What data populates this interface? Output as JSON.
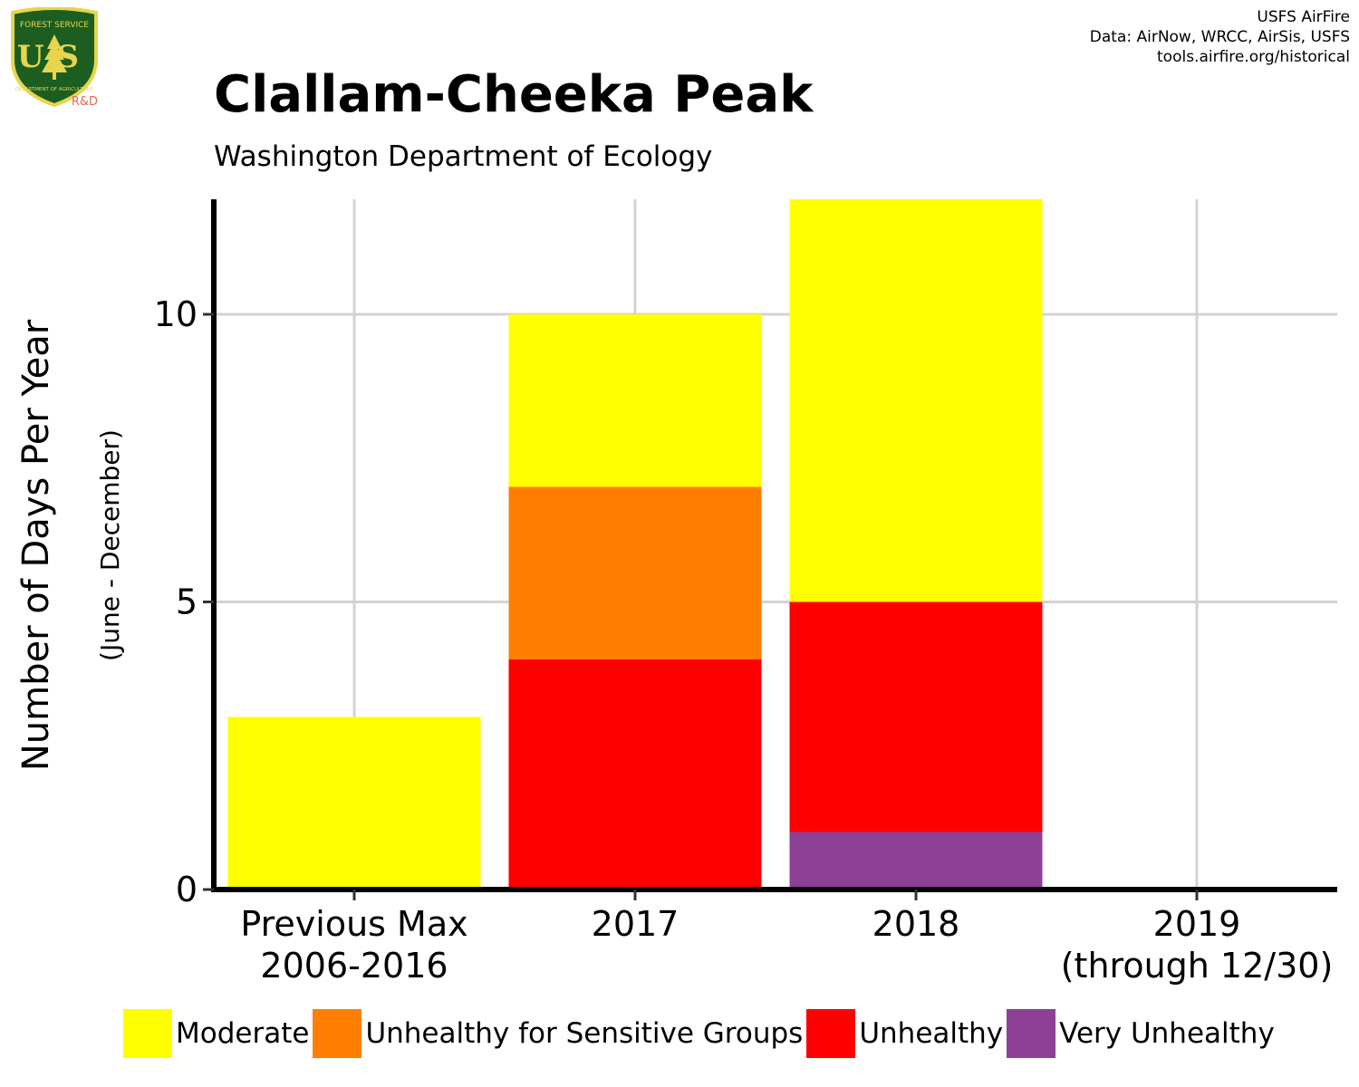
{
  "header": {
    "title": "Clallam-Cheeka Peak",
    "subtitle": "Washington Department of Ecology"
  },
  "credits": {
    "line1": "USFS AirFire",
    "line2": "Data: AirNow, WRCC, AirSis, USFS",
    "line3": "tools.airfire.org/historical"
  },
  "logo": {
    "top_text": "FOREST SERVICE",
    "letters": "US",
    "bottom_text": "DEPARTMENT OF AGRICULTURE",
    "rd_text": "R&D"
  },
  "chart_data": {
    "type": "bar",
    "stacked": true,
    "categories": [
      [
        "Previous Max",
        "2006-2016"
      ],
      [
        "2017"
      ],
      [
        "2018"
      ],
      [
        "2019",
        "(through 12/30)"
      ]
    ],
    "series": [
      {
        "name": "Very Unhealthy",
        "color": "#8E3F96",
        "values": [
          0,
          0,
          1,
          0
        ]
      },
      {
        "name": "Unhealthy",
        "color": "#FF0000",
        "values": [
          0,
          4,
          4,
          0
        ]
      },
      {
        "name": "Unhealthy for Sensitive Groups",
        "color": "#FF7E00",
        "values": [
          0,
          3,
          0,
          0
        ]
      },
      {
        "name": "Moderate",
        "color": "#FFFF00",
        "values": [
          3,
          3,
          7,
          0
        ]
      }
    ],
    "legend_order": [
      "Moderate",
      "Unhealthy for Sensitive Groups",
      "Unhealthy",
      "Very Unhealthy"
    ],
    "ylabel": "Number of Days Per Year",
    "ylabel_sub": "(June - December)",
    "ylim": [
      0,
      12
    ],
    "yticks": [
      0,
      5,
      10
    ],
    "grid": true,
    "legend_position": "bottom"
  }
}
